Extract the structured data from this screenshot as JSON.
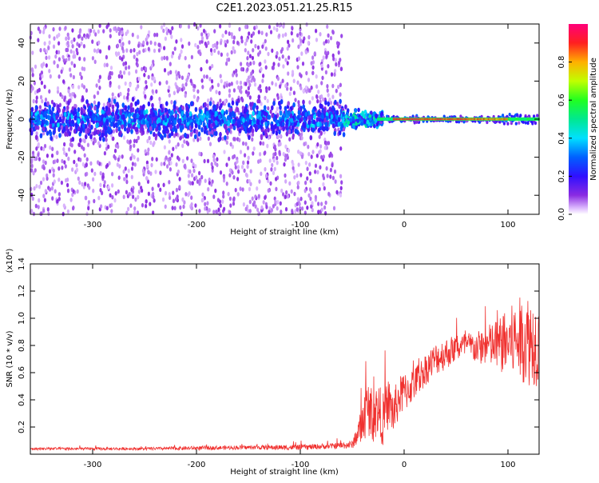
{
  "title": "C2E1.2023.051.21.25.R15",
  "colors": {
    "axis": "#000000",
    "snr_line": "#f0312f",
    "spectrogram_low": "#e6c8fb",
    "spectrogram_mid": "#5b0bd9",
    "spectrogram_peak": "#e8124e"
  },
  "chart_data": [
    {
      "type": "heatmap",
      "name": "spectrogram",
      "xlabel": "Height of straight line (km)",
      "ylabel": "Frequency (Hz)",
      "xlim": [
        -360,
        130
      ],
      "ylim": [
        -50,
        50
      ],
      "xticks": [
        -300,
        -200,
        -100,
        0,
        100
      ],
      "yticks": [
        -40,
        -20,
        0,
        20,
        40
      ],
      "colorbar": {
        "label": "Normalized spectral amplitude",
        "range": [
          0.0,
          1.0
        ],
        "ticks": [
          "0.0",
          "0.2",
          "0.4",
          "0.6",
          "0.8"
        ],
        "colormap": "rainbow"
      },
      "features": [
        {
          "region_x": [
            -360,
            -60
          ],
          "freq_band": [
            -15,
            15
          ],
          "core_amplitude": 0.25,
          "scatter_band": [
            -50,
            50
          ],
          "scatter_amplitude": 0.05
        },
        {
          "region_x": [
            -60,
            -25
          ],
          "freq_band": [
            -8,
            8
          ],
          "core_amplitude": 0.45,
          "note": "transition"
        },
        {
          "region_x": [
            -25,
            130
          ],
          "freq_band": [
            -2,
            2
          ],
          "core_amplitude": 1.0,
          "note": "narrow line near 0 Hz"
        }
      ],
      "grid": false
    },
    {
      "type": "line",
      "name": "snr",
      "xlabel": "Height of straight line (km)",
      "ylabel": "SNR (10 * v/v)",
      "yscale_label": "(x10⁴)",
      "xlim": [
        -360,
        130
      ],
      "ylim": [
        0,
        1.4
      ],
      "xticks": [
        -300,
        -200,
        -100,
        0,
        100
      ],
      "yticks": [
        0.2,
        0.4,
        0.6,
        0.8,
        1.0,
        1.2,
        1.4
      ],
      "series": [
        {
          "x": [
            -360,
            -300,
            -250,
            -200,
            -150,
            -100,
            -70,
            -50,
            -45,
            -40,
            -35,
            -30,
            -25,
            -20,
            -15,
            -10,
            -5,
            0,
            10,
            20,
            30,
            40,
            50,
            60,
            70,
            80,
            90,
            100,
            110,
            120,
            130
          ],
          "y": [
            0.04,
            0.04,
            0.04,
            0.045,
            0.05,
            0.05,
            0.06,
            0.07,
            0.15,
            0.22,
            0.35,
            0.28,
            0.33,
            0.25,
            0.38,
            0.3,
            0.42,
            0.45,
            0.52,
            0.62,
            0.7,
            0.74,
            0.78,
            0.8,
            0.78,
            0.8,
            0.8,
            0.82,
            0.85,
            0.85,
            0.8
          ],
          "spread": [
            0.01,
            0.01,
            0.01,
            0.015,
            0.015,
            0.02,
            0.02,
            0.03,
            0.08,
            0.15,
            0.2,
            0.2,
            0.2,
            0.2,
            0.18,
            0.18,
            0.15,
            0.15,
            0.12,
            0.12,
            0.12,
            0.12,
            0.1,
            0.1,
            0.12,
            0.15,
            0.2,
            0.25,
            0.3,
            0.35,
            0.3
          ]
        }
      ],
      "grid": false
    }
  ]
}
